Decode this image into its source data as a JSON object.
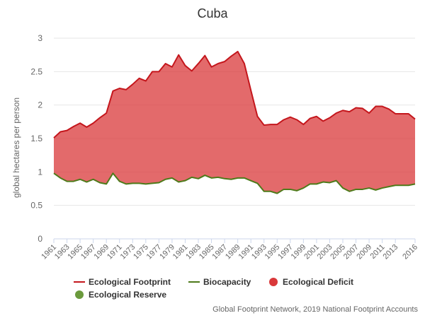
{
  "chart_data": {
    "type": "area",
    "title": "Cuba",
    "xlabel": "",
    "ylabel": "global hectares per person",
    "ylim": [
      0,
      3
    ],
    "yticks": [
      0,
      0.5,
      1,
      1.5,
      2,
      2.5,
      3
    ],
    "xlim": [
      1961,
      2016
    ],
    "xtick_labels": [
      "1961",
      "1963",
      "1965",
      "1967",
      "1969",
      "1971",
      "1973",
      "1975",
      "1977",
      "1979",
      "1981",
      "1983",
      "1985",
      "1987",
      "1989",
      "1991",
      "1993",
      "1995",
      "1997",
      "1999",
      "2001",
      "2003",
      "2005",
      "2007",
      "2009",
      "2011",
      "2013",
      "2016"
    ],
    "grid": "horizontal",
    "legend_position": "bottom-left",
    "x": [
      1961,
      1962,
      1963,
      1964,
      1965,
      1966,
      1967,
      1968,
      1969,
      1970,
      1971,
      1972,
      1973,
      1974,
      1975,
      1976,
      1977,
      1978,
      1979,
      1980,
      1981,
      1982,
      1983,
      1984,
      1985,
      1986,
      1987,
      1988,
      1989,
      1990,
      1991,
      1992,
      1993,
      1994,
      1995,
      1996,
      1997,
      1998,
      1999,
      2000,
      2001,
      2002,
      2003,
      2004,
      2005,
      2006,
      2007,
      2008,
      2009,
      2010,
      2011,
      2012,
      2013,
      2014,
      2015,
      2016
    ],
    "series": [
      {
        "name": "Ecological Footprint",
        "color": "#c4161c",
        "values": [
          1.51,
          1.6,
          1.62,
          1.68,
          1.73,
          1.67,
          1.73,
          1.81,
          1.88,
          2.21,
          2.25,
          2.23,
          2.31,
          2.4,
          2.36,
          2.5,
          2.5,
          2.62,
          2.57,
          2.75,
          2.59,
          2.51,
          2.62,
          2.74,
          2.57,
          2.62,
          2.65,
          2.73,
          2.8,
          2.62,
          2.22,
          1.83,
          1.7,
          1.71,
          1.71,
          1.78,
          1.82,
          1.78,
          1.71,
          1.8,
          1.83,
          1.76,
          1.81,
          1.88,
          1.92,
          1.9,
          1.96,
          1.95,
          1.88,
          1.98,
          1.98,
          1.94,
          1.87,
          1.87,
          1.87,
          1.79
        ]
      },
      {
        "name": "Biocapacity",
        "color": "#4e7a1a",
        "values": [
          0.98,
          0.91,
          0.86,
          0.86,
          0.89,
          0.85,
          0.89,
          0.84,
          0.82,
          0.98,
          0.86,
          0.82,
          0.83,
          0.83,
          0.82,
          0.83,
          0.84,
          0.89,
          0.91,
          0.85,
          0.87,
          0.92,
          0.9,
          0.95,
          0.91,
          0.92,
          0.9,
          0.89,
          0.91,
          0.91,
          0.87,
          0.83,
          0.71,
          0.71,
          0.68,
          0.74,
          0.74,
          0.72,
          0.76,
          0.82,
          0.82,
          0.85,
          0.84,
          0.87,
          0.76,
          0.71,
          0.74,
          0.74,
          0.76,
          0.73,
          0.76,
          0.78,
          0.8,
          0.8,
          0.8,
          0.82
        ]
      }
    ],
    "fills": [
      {
        "name": "Ecological Deficit",
        "color": "#d9383a"
      },
      {
        "name": "Ecological Reserve",
        "color": "#6b9a3d"
      }
    ],
    "credit": "Global Footprint Network, 2019 National Footprint Accounts"
  }
}
